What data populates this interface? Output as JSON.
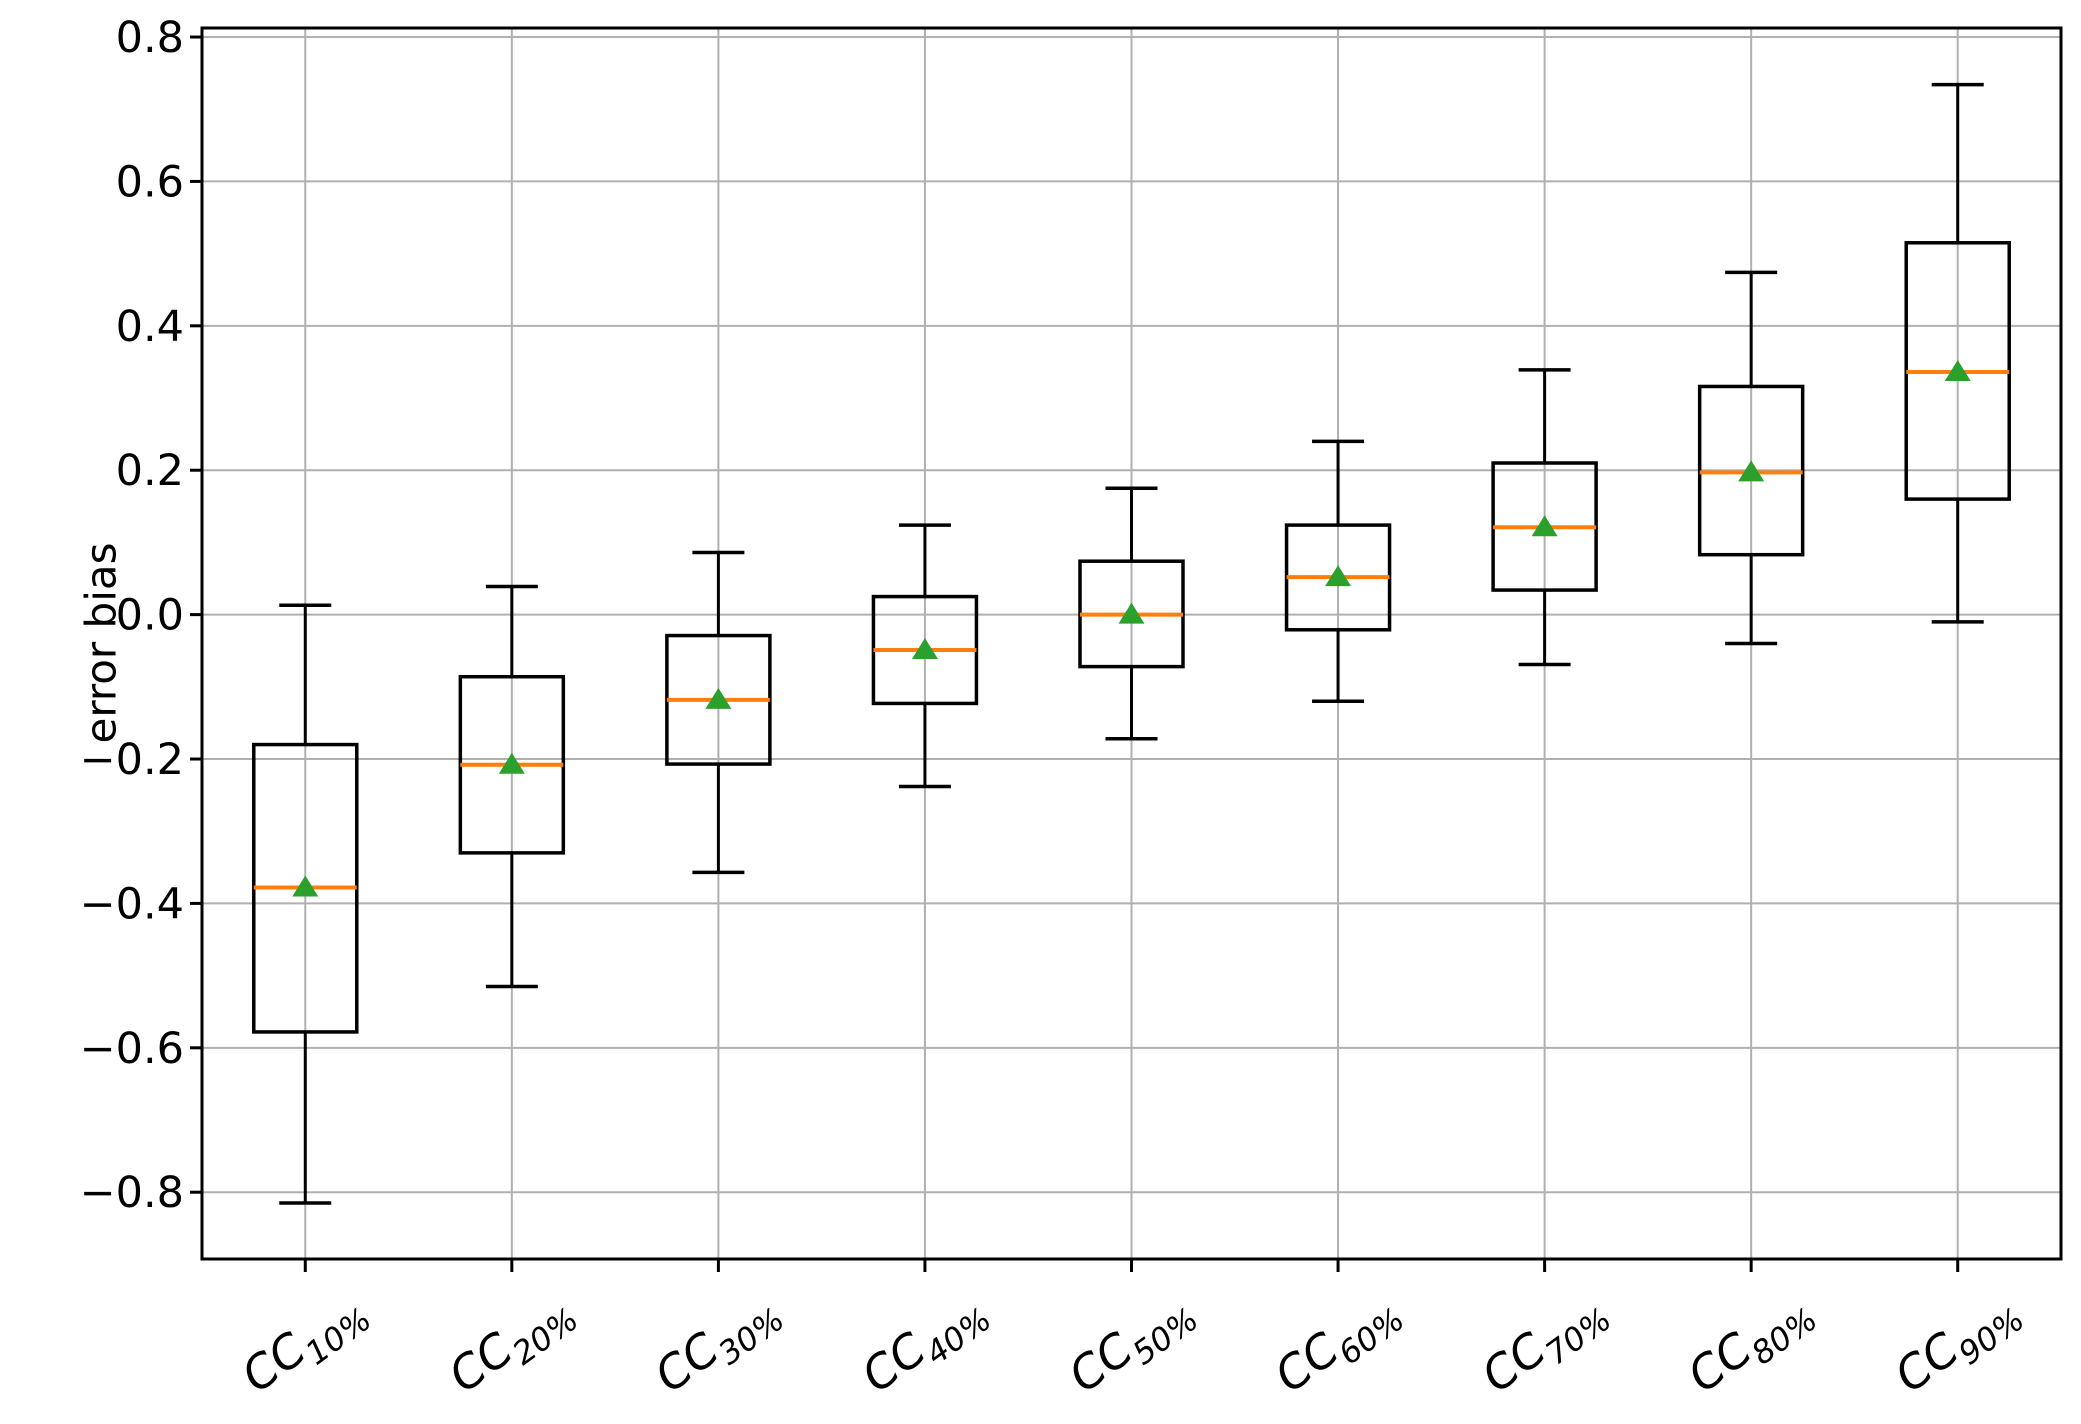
{
  "chart_data": {
    "type": "boxplot",
    "title": "",
    "xlabel": "",
    "ylabel": "error bias",
    "grid": true,
    "legend": "none",
    "ylim": [
      -0.8925,
      0.8125
    ],
    "yticks": [
      {
        "v": 0.8,
        "label": "0.8"
      },
      {
        "v": 0.6,
        "label": "0.6"
      },
      {
        "v": 0.4,
        "label": "0.4"
      },
      {
        "v": 0.2,
        "label": "0.2"
      },
      {
        "v": 0.0,
        "label": "0.0"
      },
      {
        "v": -0.2,
        "label": "−0.2"
      },
      {
        "v": -0.4,
        "label": "−0.4"
      },
      {
        "v": -0.6,
        "label": "−0.6"
      },
      {
        "v": -0.8,
        "label": "−0.8"
      }
    ],
    "categories": [
      {
        "base": "CC",
        "sub": "10%"
      },
      {
        "base": "CC",
        "sub": "20%"
      },
      {
        "base": "CC",
        "sub": "30%"
      },
      {
        "base": "CC",
        "sub": "40%"
      },
      {
        "base": "CC",
        "sub": "50%"
      },
      {
        "base": "CC",
        "sub": "60%"
      },
      {
        "base": "CC",
        "sub": "70%"
      },
      {
        "base": "CC",
        "sub": "80%"
      },
      {
        "base": "CC",
        "sub": "90%"
      }
    ],
    "boxes": [
      {
        "whislo": -0.815,
        "q1": -0.578,
        "med": -0.378,
        "mean": -0.378,
        "q3": -0.18,
        "whishi": 0.013
      },
      {
        "whislo": -0.515,
        "q1": -0.33,
        "med": -0.208,
        "mean": -0.208,
        "q3": -0.086,
        "whishi": 0.039
      },
      {
        "whislo": -0.357,
        "q1": -0.207,
        "med": -0.118,
        "mean": -0.118,
        "q3": -0.029,
        "whishi": 0.086
      },
      {
        "whislo": -0.238,
        "q1": -0.123,
        "med": -0.049,
        "mean": -0.049,
        "q3": 0.025,
        "whishi": 0.124
      },
      {
        "whislo": -0.172,
        "q1": -0.072,
        "med": 0.0,
        "mean": 0.0,
        "q3": 0.074,
        "whishi": 0.175
      },
      {
        "whislo": -0.12,
        "q1": -0.021,
        "med": 0.052,
        "mean": 0.052,
        "q3": 0.124,
        "whishi": 0.24
      },
      {
        "whislo": -0.069,
        "q1": 0.034,
        "med": 0.121,
        "mean": 0.121,
        "q3": 0.21,
        "whishi": 0.339
      },
      {
        "whislo": -0.04,
        "q1": 0.083,
        "med": 0.197,
        "mean": 0.197,
        "q3": 0.316,
        "whishi": 0.474
      },
      {
        "whislo": -0.01,
        "q1": 0.16,
        "med": 0.336,
        "mean": 0.336,
        "q3": 0.515,
        "whishi": 0.734
      }
    ],
    "colors": {
      "box_line": "#000000",
      "median": "#ff7f0e",
      "mean_marker": "#2ca02c",
      "grid": "#b0b0b0",
      "spine": "#000000",
      "background": "#ffffff",
      "tick_label": "#000000"
    }
  }
}
